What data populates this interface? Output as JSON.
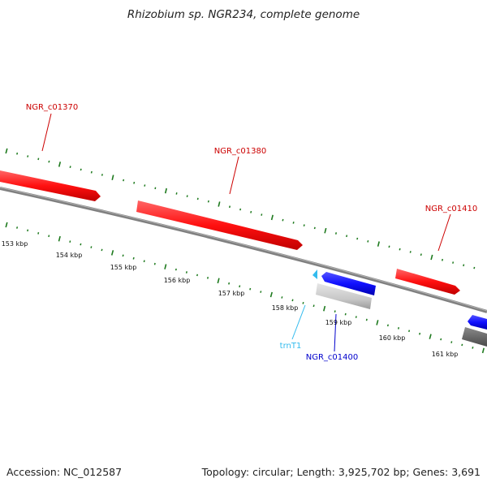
{
  "title": "Rhizobium sp. NGR234, complete genome",
  "footer": {
    "accession": "Accession: NC_012587",
    "summary": "Topology: circular; Length: 3,925,702 bp; Genes: 3,691"
  },
  "colors": {
    "forward_gene": "#ff1a1a",
    "reverse_gene": "#1a1aff",
    "trna": "#33bbee",
    "backbone": "#808080",
    "ticks": "#1e7a1e",
    "gene_label": "#cc0000",
    "reverse_label": "#0000cc"
  },
  "scale_labels": [
    "153 kbp",
    "154 kbp",
    "155 kbp",
    "156 kbp",
    "157 kbp",
    "158 kbp",
    "159 kbp",
    "160 kbp",
    "161 kbp"
  ],
  "features": [
    {
      "name": "NGR_c01370",
      "strand": "+",
      "type": "gene"
    },
    {
      "name": "NGR_c01380",
      "strand": "+",
      "type": "gene"
    },
    {
      "name": "NGR_c01410",
      "strand": "+",
      "type": "gene"
    },
    {
      "name": "trnT1",
      "strand": "-",
      "type": "tRNA"
    },
    {
      "name": "NGR_c01400",
      "strand": "-",
      "type": "gene"
    }
  ]
}
